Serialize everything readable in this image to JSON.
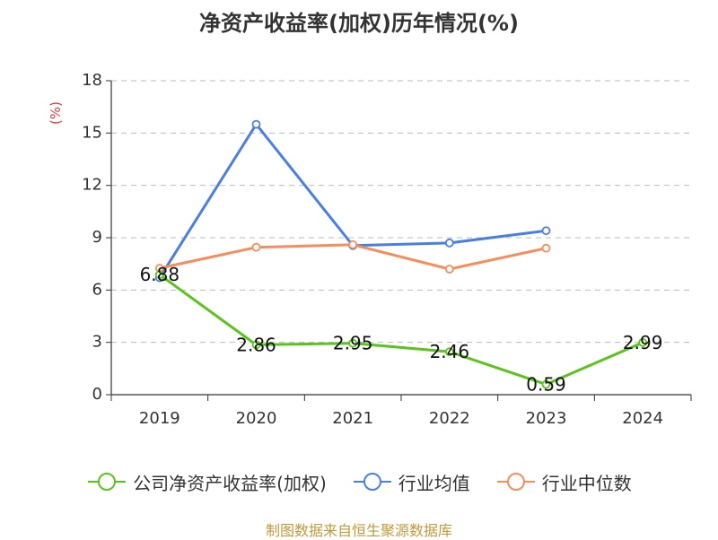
{
  "title": "净资产收益率(加权)历年情况(%)",
  "source": "制图数据来自恒生聚源数据库",
  "colors": {
    "source_text": "#c09a3a",
    "unit_text": "#d93b3b",
    "grid": "#bbbbbb",
    "axis": "#333333"
  },
  "chart_data": {
    "type": "line",
    "title": "净资产收益率(加权)历年情况(%)",
    "ylabel": "(%)",
    "categories": [
      "2019",
      "2020",
      "2021",
      "2022",
      "2023",
      "2024"
    ],
    "ylim": [
      0,
      18
    ],
    "yticks": [
      0,
      3,
      6,
      9,
      12,
      15,
      18
    ],
    "grid": true,
    "legend_position": "bottom",
    "series": [
      {
        "name": "公司净资产收益率(加权)",
        "color": "#5ac31e",
        "values": [
          6.88,
          2.86,
          2.95,
          2.46,
          0.59,
          2.99
        ],
        "labels": true
      },
      {
        "name": "行业均值",
        "color": "#4a7fe0",
        "values": [
          6.7,
          15.5,
          8.55,
          8.7,
          9.4,
          null
        ],
        "labels": false
      },
      {
        "name": "行业中位数",
        "color": "#f78c5c",
        "values": [
          7.25,
          8.45,
          8.6,
          7.2,
          8.4,
          null
        ],
        "labels": false
      }
    ]
  }
}
